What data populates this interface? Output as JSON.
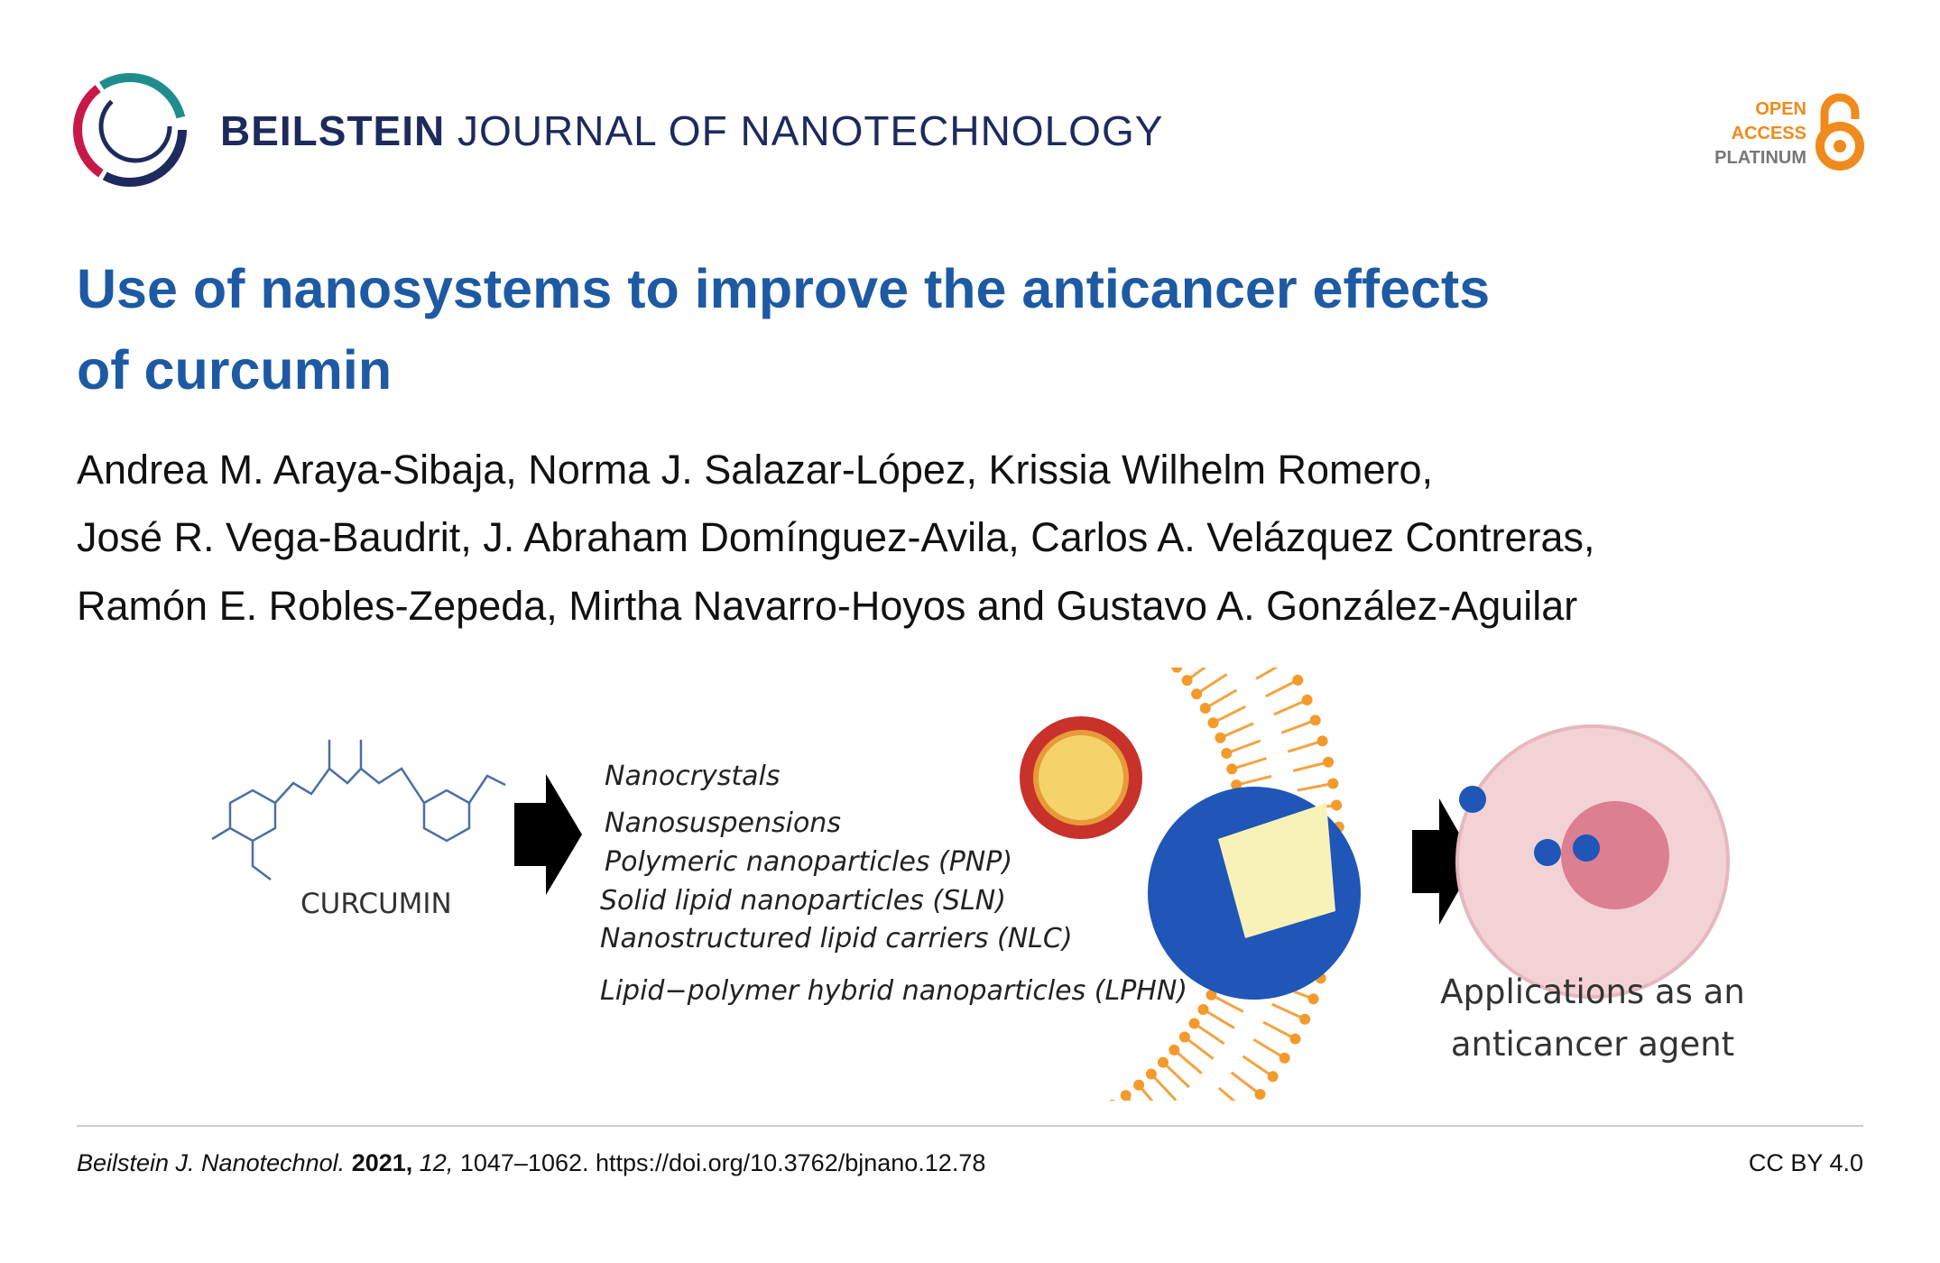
{
  "header": {
    "journal_bold": "BEILSTEIN",
    "journal_rest": "JOURNAL OF NANOTECHNOLOGY",
    "open_access": [
      "OPEN",
      "ACCESS",
      "PLATINUM"
    ]
  },
  "title": [
    "Use of nanosystems to improve the anticancer effects",
    "of curcumin"
  ],
  "authors": [
    "Andrea M. Araya-Sibaja, Norma J. Salazar-López, Krissia Wilhelm Romero,",
    "José R. Vega-Baudrit, J. Abraham Domínguez-Avila, Carlos A. Velázquez Contreras,",
    "Ramón E. Robles-Zepeda, Mirtha Navarro-Hoyos and Gustavo A. González-Aguilar"
  ],
  "graphic": {
    "curcumin_label": "CURCUMIN",
    "nanosystems": [
      "Nanocrystals",
      "Nanosuspensions",
      "Polymeric nanoparticles (PNP)",
      "Solid lipid nanoparticles (SLN)",
      "Nanostructured lipid carriers (NLC)",
      "Lipid−polymer hybrid nanoparticles (LPHN)"
    ],
    "applications": [
      "Applications as an",
      "anticancer agent"
    ]
  },
  "footer": {
    "journal": "Beilstein J. Nanotechnol.",
    "year": "2021,",
    "volume": "12,",
    "pages": "1047–1062.",
    "doi": "https://doi.org/10.3762/bjnano.12.78",
    "license": "CC BY 4.0"
  }
}
